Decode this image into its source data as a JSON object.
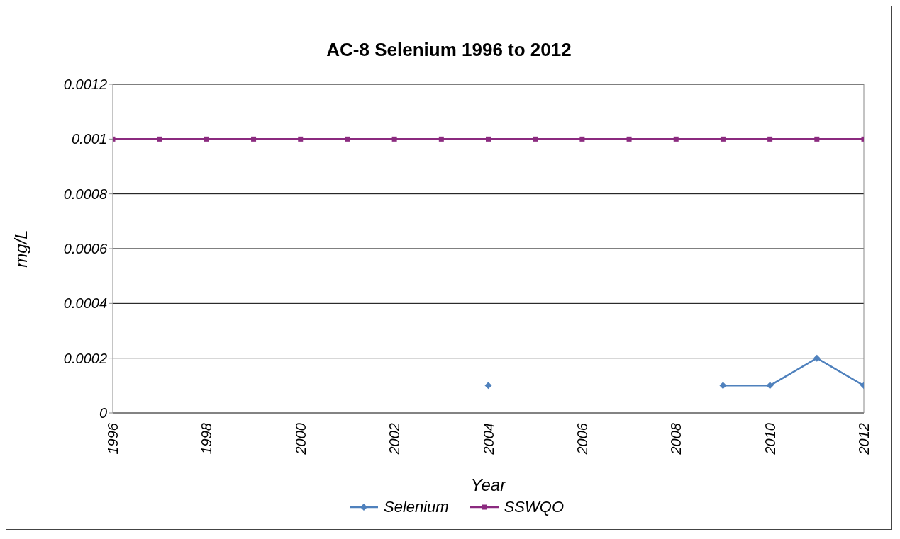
{
  "chart_data": {
    "type": "line",
    "title": "AC-8 Selenium 1996 to 2012",
    "xlabel": "Year",
    "ylabel": "mg/L",
    "x": [
      1996,
      1997,
      1998,
      1999,
      2000,
      2001,
      2002,
      2003,
      2004,
      2005,
      2006,
      2007,
      2008,
      2009,
      2010,
      2011,
      2012
    ],
    "xlim": [
      1996,
      2012
    ],
    "xticks": [
      1996,
      1998,
      2000,
      2002,
      2004,
      2006,
      2008,
      2010,
      2012
    ],
    "ylim": [
      0,
      0.0012
    ],
    "yticks": [
      0,
      0.0002,
      0.0004,
      0.0006,
      0.0008,
      0.001,
      0.0012
    ],
    "series": [
      {
        "name": "Selenium",
        "color": "#4f81bd",
        "marker": "diamond",
        "values": [
          null,
          null,
          null,
          null,
          null,
          null,
          null,
          null,
          0.0001,
          null,
          null,
          null,
          null,
          0.0001,
          0.0001,
          0.0002,
          0.0001
        ]
      },
      {
        "name": "SSWQO",
        "color": "#8b2a7f",
        "marker": "square",
        "values": [
          0.001,
          0.001,
          0.001,
          0.001,
          0.001,
          0.001,
          0.001,
          0.001,
          0.001,
          0.001,
          0.001,
          0.001,
          0.001,
          0.001,
          0.001,
          0.001,
          0.001
        ]
      }
    ],
    "grid": "y",
    "legend": "bottom",
    "line_style": "solid"
  }
}
